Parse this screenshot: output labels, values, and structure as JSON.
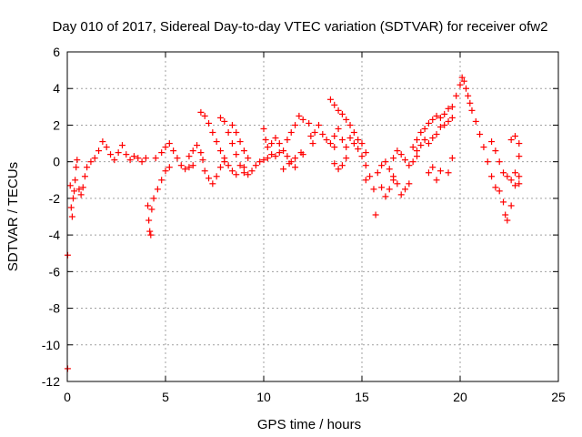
{
  "chart_data": {
    "type": "scatter",
    "title": "Day 010 of 2017, Sidereal Day-to-day VTEC variation (SDTVAR) for receiver ofw2",
    "xlabel": "GPS time / hours",
    "ylabel": "SDTVAR / TECUs",
    "xlim": [
      0,
      25
    ],
    "ylim": [
      -12,
      6
    ],
    "xticks": [
      0,
      5,
      10,
      15,
      20,
      25
    ],
    "yticks": [
      -12,
      -10,
      -8,
      -6,
      -4,
      -2,
      0,
      2,
      4,
      6
    ],
    "grid": true,
    "marker": "+",
    "series": [
      {
        "name": "SDTVAR",
        "color": "#ff0000",
        "points": [
          [
            0.02,
            -5.1
          ],
          [
            0.02,
            -11.3
          ],
          [
            0.15,
            -1.3
          ],
          [
            0.2,
            -2.5
          ],
          [
            0.25,
            -3.0
          ],
          [
            0.3,
            -2.0
          ],
          [
            0.35,
            -1.6
          ],
          [
            0.4,
            -1.0
          ],
          [
            0.45,
            -0.3
          ],
          [
            0.5,
            0.1
          ],
          [
            0.6,
            -1.5
          ],
          [
            0.7,
            -1.8
          ],
          [
            0.8,
            -1.4
          ],
          [
            0.9,
            -0.8
          ],
          [
            1.0,
            -0.3
          ],
          [
            1.2,
            0.0
          ],
          [
            1.4,
            0.2
          ],
          [
            1.6,
            0.6
          ],
          [
            1.8,
            1.1
          ],
          [
            2.0,
            0.8
          ],
          [
            2.2,
            0.4
          ],
          [
            2.4,
            0.1
          ],
          [
            2.6,
            0.5
          ],
          [
            2.8,
            0.9
          ],
          [
            3.0,
            0.4
          ],
          [
            3.2,
            0.1
          ],
          [
            3.4,
            0.3
          ],
          [
            3.6,
            0.2
          ],
          [
            3.8,
            0.0
          ],
          [
            4.0,
            0.2
          ],
          [
            4.1,
            -2.4
          ],
          [
            4.15,
            -3.2
          ],
          [
            4.2,
            -3.8
          ],
          [
            4.25,
            -4.0
          ],
          [
            4.3,
            -2.6
          ],
          [
            4.4,
            -2.0
          ],
          [
            4.6,
            -1.5
          ],
          [
            4.8,
            -1.0
          ],
          [
            5.0,
            -0.5
          ],
          [
            5.2,
            -0.3
          ],
          [
            4.5,
            0.2
          ],
          [
            4.8,
            0.5
          ],
          [
            5.0,
            0.8
          ],
          [
            5.2,
            1.0
          ],
          [
            5.4,
            0.6
          ],
          [
            5.6,
            0.2
          ],
          [
            5.8,
            -0.2
          ],
          [
            6.0,
            -0.4
          ],
          [
            6.2,
            -0.3
          ],
          [
            6.4,
            -0.2
          ],
          [
            6.2,
            0.3
          ],
          [
            6.4,
            0.6
          ],
          [
            6.6,
            0.9
          ],
          [
            6.8,
            0.5
          ],
          [
            6.9,
            0.1
          ],
          [
            6.8,
            2.7
          ],
          [
            7.0,
            2.5
          ],
          [
            7.2,
            2.1
          ],
          [
            7.4,
            1.6
          ],
          [
            7.6,
            1.1
          ],
          [
            7.8,
            0.6
          ],
          [
            8.0,
            0.2
          ],
          [
            8.2,
            -0.2
          ],
          [
            8.4,
            -0.5
          ],
          [
            8.6,
            -0.7
          ],
          [
            7.8,
            2.4
          ],
          [
            8.0,
            2.2
          ],
          [
            8.2,
            1.6
          ],
          [
            8.4,
            1.0
          ],
          [
            8.6,
            0.4
          ],
          [
            8.8,
            -0.2
          ],
          [
            9.0,
            -0.6
          ],
          [
            8.4,
            2.0
          ],
          [
            8.6,
            1.6
          ],
          [
            8.8,
            1.1
          ],
          [
            9.0,
            0.6
          ],
          [
            9.2,
            0.2
          ],
          [
            7.0,
            -0.5
          ],
          [
            7.2,
            -0.9
          ],
          [
            7.4,
            -1.2
          ],
          [
            7.6,
            -0.8
          ],
          [
            7.8,
            -0.3
          ],
          [
            8.0,
            0.0
          ],
          [
            9.0,
            -0.3
          ],
          [
            9.2,
            -0.7
          ],
          [
            9.4,
            -0.5
          ],
          [
            9.6,
            -0.2
          ],
          [
            9.8,
            0.0
          ],
          [
            10.0,
            0.1
          ],
          [
            10.2,
            0.2
          ],
          [
            10.4,
            0.4
          ],
          [
            10.6,
            0.3
          ],
          [
            10.8,
            0.5
          ],
          [
            10.0,
            1.8
          ],
          [
            10.1,
            1.2
          ],
          [
            10.2,
            0.8
          ],
          [
            10.4,
            1.0
          ],
          [
            10.6,
            1.3
          ],
          [
            10.8,
            1.0
          ],
          [
            11.0,
            0.6
          ],
          [
            11.2,
            0.3
          ],
          [
            11.4,
            0.0
          ],
          [
            11.6,
            -0.3
          ],
          [
            11.2,
            1.2
          ],
          [
            11.4,
            1.6
          ],
          [
            11.6,
            2.0
          ],
          [
            11.8,
            2.5
          ],
          [
            12.0,
            2.3
          ],
          [
            11.0,
            -0.4
          ],
          [
            11.3,
            -0.1
          ],
          [
            11.6,
            0.2
          ],
          [
            11.9,
            0.5
          ],
          [
            12.0,
            0.4
          ],
          [
            12.3,
            2.1
          ],
          [
            12.4,
            1.4
          ],
          [
            12.5,
            1.0
          ],
          [
            12.6,
            1.6
          ],
          [
            12.8,
            2.0
          ],
          [
            13.0,
            1.5
          ],
          [
            13.2,
            1.2
          ],
          [
            13.4,
            1.0
          ],
          [
            13.6,
            0.8
          ],
          [
            13.4,
            3.4
          ],
          [
            13.6,
            3.1
          ],
          [
            13.8,
            2.8
          ],
          [
            14.0,
            2.6
          ],
          [
            14.2,
            2.3
          ],
          [
            14.4,
            2.0
          ],
          [
            14.6,
            1.6
          ],
          [
            14.8,
            1.2
          ],
          [
            15.0,
            1.0
          ],
          [
            15.2,
            0.5
          ],
          [
            13.6,
            1.4
          ],
          [
            13.8,
            1.8
          ],
          [
            14.0,
            1.2
          ],
          [
            14.2,
            0.8
          ],
          [
            14.4,
            1.3
          ],
          [
            14.6,
            1.0
          ],
          [
            14.8,
            0.7
          ],
          [
            15.0,
            0.3
          ],
          [
            15.2,
            -0.2
          ],
          [
            13.6,
            -0.1
          ],
          [
            13.8,
            -0.4
          ],
          [
            14.0,
            -0.2
          ],
          [
            14.2,
            0.2
          ],
          [
            15.2,
            -1.0
          ],
          [
            15.4,
            -0.8
          ],
          [
            15.6,
            -1.5
          ],
          [
            15.7,
            -2.9
          ],
          [
            15.8,
            -0.6
          ],
          [
            16.0,
            -0.2
          ],
          [
            16.2,
            0.0
          ],
          [
            16.4,
            -0.4
          ],
          [
            16.6,
            -0.8
          ],
          [
            16.8,
            -1.2
          ],
          [
            16.0,
            -1.4
          ],
          [
            16.2,
            -1.9
          ],
          [
            16.4,
            -1.5
          ],
          [
            16.6,
            -1.0
          ],
          [
            17.0,
            -1.8
          ],
          [
            17.2,
            -1.5
          ],
          [
            17.4,
            -1.2
          ],
          [
            16.6,
            0.2
          ],
          [
            16.8,
            0.6
          ],
          [
            17.0,
            0.4
          ],
          [
            17.2,
            0.1
          ],
          [
            17.4,
            -0.2
          ],
          [
            17.6,
            0.0
          ],
          [
            17.8,
            0.3
          ],
          [
            17.6,
            0.8
          ],
          [
            17.8,
            1.2
          ],
          [
            18.0,
            1.6
          ],
          [
            18.2,
            1.8
          ],
          [
            18.4,
            2.1
          ],
          [
            18.6,
            2.3
          ],
          [
            18.8,
            2.5
          ],
          [
            19.0,
            2.4
          ],
          [
            19.2,
            2.6
          ],
          [
            19.4,
            2.9
          ],
          [
            17.8,
            0.6
          ],
          [
            18.0,
            0.9
          ],
          [
            18.2,
            1.2
          ],
          [
            18.4,
            1.0
          ],
          [
            18.6,
            1.3
          ],
          [
            18.8,
            1.5
          ],
          [
            19.0,
            1.9
          ],
          [
            19.2,
            2.0
          ],
          [
            19.4,
            2.2
          ],
          [
            19.6,
            2.4
          ],
          [
            18.4,
            -0.6
          ],
          [
            18.6,
            -0.3
          ],
          [
            18.8,
            -1.0
          ],
          [
            19.0,
            -0.5
          ],
          [
            19.4,
            -0.6
          ],
          [
            19.6,
            0.2
          ],
          [
            19.6,
            3.0
          ],
          [
            19.8,
            3.6
          ],
          [
            20.0,
            4.2
          ],
          [
            20.1,
            4.6
          ],
          [
            20.2,
            4.4
          ],
          [
            20.3,
            4.0
          ],
          [
            20.4,
            3.6
          ],
          [
            20.5,
            3.2
          ],
          [
            20.6,
            2.8
          ],
          [
            20.8,
            2.2
          ],
          [
            21.0,
            1.5
          ],
          [
            21.2,
            0.8
          ],
          [
            21.4,
            0.0
          ],
          [
            21.6,
            -0.8
          ],
          [
            21.8,
            -1.4
          ],
          [
            22.0,
            -1.6
          ],
          [
            22.2,
            -2.2
          ],
          [
            22.3,
            -2.9
          ],
          [
            22.4,
            -3.2
          ],
          [
            22.6,
            -2.4
          ],
          [
            21.6,
            1.1
          ],
          [
            21.8,
            0.6
          ],
          [
            22.0,
            0.0
          ],
          [
            22.2,
            -0.6
          ],
          [
            22.6,
            1.2
          ],
          [
            22.8,
            1.4
          ],
          [
            23.0,
            1.0
          ],
          [
            23.0,
            0.3
          ],
          [
            22.8,
            -0.6
          ],
          [
            23.0,
            -1.2
          ],
          [
            22.4,
            -0.8
          ],
          [
            22.6,
            -1.0
          ],
          [
            22.8,
            -1.3
          ],
          [
            23.0,
            -0.8
          ]
        ]
      }
    ]
  }
}
